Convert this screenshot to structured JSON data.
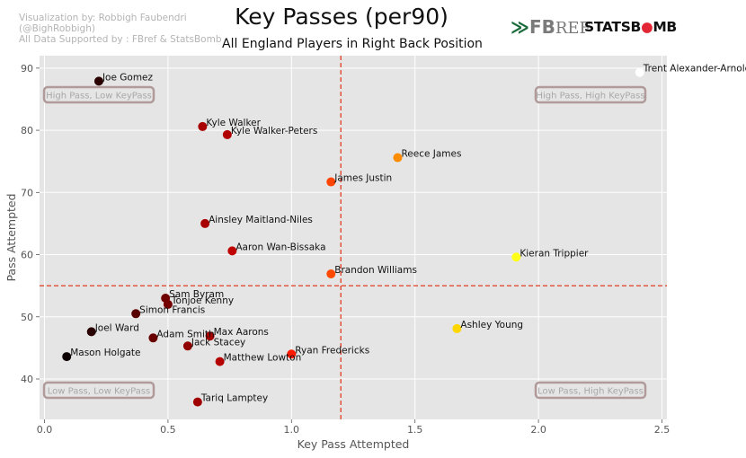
{
  "credits": {
    "line1": "Visualization by: Robbigh Faubendri",
    "line2": "(@BighRobbigh)",
    "line3": "All Data Supported by : FBref & StatsBomb"
  },
  "logos": {
    "fbref_mark": "≫",
    "fbref_fb": "FB",
    "fbref_ref": "REF",
    "statsbomb_stats": "STATSB",
    "statsbomb_o": "●",
    "statsbomb_mb": "MB"
  },
  "chart_data": {
    "type": "scatter",
    "title": "Key Passes (per90)",
    "subtitle": "All England Players in Right Back Position",
    "xlabel": "Key Pass Attempted",
    "ylabel": "Pass Attempted",
    "xlim": [
      -0.02,
      2.52
    ],
    "ylim": [
      33.5,
      92
    ],
    "xticks": [
      0.0,
      0.5,
      1.0,
      1.5,
      2.0,
      2.5
    ],
    "xtick_labels": [
      "0.0",
      "0.5",
      "1.0",
      "1.5",
      "2.0",
      "2.5"
    ],
    "yticks": [
      40,
      50,
      60,
      70,
      80,
      90
    ],
    "ytick_labels": [
      "40",
      "50",
      "60",
      "70",
      "80",
      "90"
    ],
    "grid": true,
    "reference_lines": {
      "x": 1.2,
      "y": 55,
      "color": "#e24a33"
    },
    "quadrant_labels": {
      "top_left": "High Pass, Low KeyPass",
      "top_right": "High Pass, High KeyPass",
      "bottom_left": "Low Pass, Low KeyPass",
      "bottom_right": "Low Pass, High KeyPass"
    },
    "points": [
      {
        "label": "Trent Alexander-Arnold",
        "x": 2.41,
        "y": 89.3,
        "color": "#ffffff"
      },
      {
        "label": "Joe Gomez",
        "x": 0.22,
        "y": 87.9,
        "color": "#2a0000"
      },
      {
        "label": "Kyle Walker",
        "x": 0.64,
        "y": 80.6,
        "color": "#a80000"
      },
      {
        "label": "Kyle Walker-Peters",
        "x": 0.74,
        "y": 79.3,
        "color": "#b00000"
      },
      {
        "label": "Reece James",
        "x": 1.43,
        "y": 75.6,
        "color": "#ff8c00"
      },
      {
        "label": "James Justin",
        "x": 1.16,
        "y": 71.7,
        "color": "#ff4500"
      },
      {
        "label": "Ainsley Maitland-Niles",
        "x": 0.65,
        "y": 65.0,
        "color": "#a80000"
      },
      {
        "label": "Aaron Wan-Bissaka",
        "x": 0.76,
        "y": 60.6,
        "color": "#c00000"
      },
      {
        "label": "Kieran Trippier",
        "x": 1.91,
        "y": 59.6,
        "color": "#ffff1a"
      },
      {
        "label": "Brandon Williams",
        "x": 1.16,
        "y": 56.9,
        "color": "#ff4a00"
      },
      {
        "label": "Sam Byram",
        "x": 0.49,
        "y": 53.0,
        "color": "#700000"
      },
      {
        "label": "Tonjoe Kenny",
        "x": 0.5,
        "y": 52.0,
        "color": "#750000"
      },
      {
        "label": "Simon Francis",
        "x": 0.37,
        "y": 50.5,
        "color": "#580000"
      },
      {
        "label": "Ashley Young",
        "x": 1.67,
        "y": 48.1,
        "color": "#ffd700"
      },
      {
        "label": "Joel Ward",
        "x": 0.19,
        "y": 47.6,
        "color": "#280000"
      },
      {
        "label": "Max Aarons",
        "x": 0.67,
        "y": 46.9,
        "color": "#a80000"
      },
      {
        "label": "Adam Smith",
        "x": 0.44,
        "y": 46.6,
        "color": "#680000"
      },
      {
        "label": "Jack Stacey",
        "x": 0.58,
        "y": 45.3,
        "color": "#900000"
      },
      {
        "label": "Ryan Fredericks",
        "x": 1.0,
        "y": 44.0,
        "color": "#ff1a00"
      },
      {
        "label": "Mason Holgate",
        "x": 0.09,
        "y": 43.6,
        "color": "#0a0000"
      },
      {
        "label": "Matthew Lowton",
        "x": 0.71,
        "y": 42.8,
        "color": "#b40000"
      },
      {
        "label": "Tariq Lamptey",
        "x": 0.62,
        "y": 36.3,
        "color": "#a00000"
      }
    ]
  }
}
